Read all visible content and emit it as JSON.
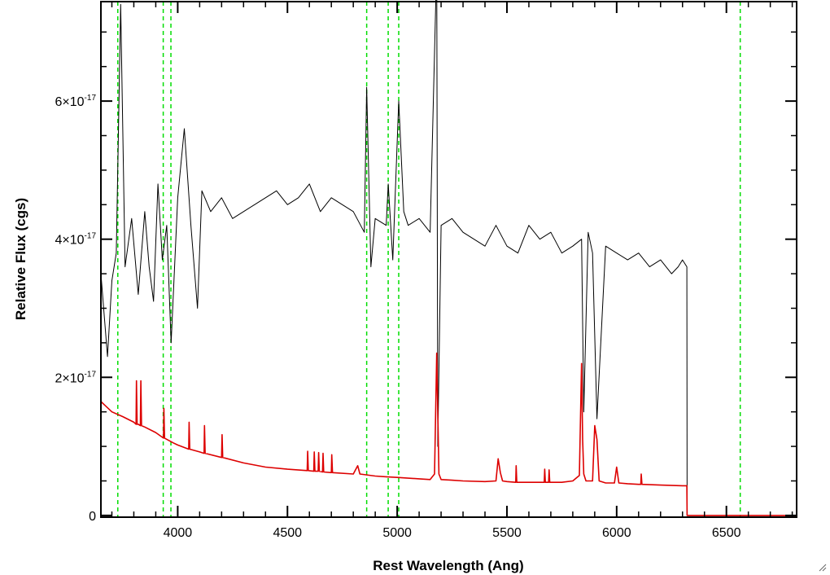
{
  "chart_data": {
    "type": "line",
    "xlabel": "Rest Wavelength (Ang)",
    "ylabel": "Relative Flux (cgs)",
    "xlim": [
      3650,
      6820
    ],
    "ylim": [
      -2.5e-19,
      7.44e-17
    ],
    "x_ticks": [
      {
        "value": 4000,
        "label": "4000"
      },
      {
        "value": 4500,
        "label": "4500"
      },
      {
        "value": 5000,
        "label": "5000"
      },
      {
        "value": 5500,
        "label": "5500"
      },
      {
        "value": 6000,
        "label": "6000"
      },
      {
        "value": 6500,
        "label": "6500"
      }
    ],
    "y_ticks": [
      {
        "value": 0,
        "label": "0",
        "mantissa": "0",
        "exponent": ""
      },
      {
        "value": 2e-17,
        "label": "2×10-17",
        "mantissa": "2×10",
        "exponent": "-17"
      },
      {
        "value": 4e-17,
        "label": "4×10-17",
        "mantissa": "4×10",
        "exponent": "-17"
      },
      {
        "value": 6e-17,
        "label": "6×10-17",
        "mantissa": "6×10",
        "exponent": "-17"
      }
    ],
    "vertical_lines": {
      "color": "#00dd00",
      "style": "dashed",
      "x": [
        3727,
        3934,
        3969,
        4861,
        4959,
        5007,
        6563
      ]
    },
    "series": [
      {
        "color": "#000000",
        "x": [
          3650,
          3680,
          3700,
          3720,
          3740,
          3760,
          3790,
          3820,
          3850,
          3870,
          3890,
          3910,
          3930,
          3950,
          3970,
          3990,
          4000,
          4030,
          4060,
          4090,
          4110,
          4150,
          4200,
          4250,
          4300,
          4350,
          4400,
          4450,
          4500,
          4550,
          4600,
          4650,
          4700,
          4750,
          4800,
          4850,
          4861,
          4880,
          4900,
          4950,
          4959,
          4980,
          5007,
          5030,
          5050,
          5100,
          5150,
          5180,
          5185,
          5200,
          5250,
          5300,
          5350,
          5400,
          5450,
          5500,
          5550,
          5600,
          5650,
          5700,
          5750,
          5800,
          5840,
          5850,
          5870,
          5890,
          5910,
          5950,
          6000,
          6050,
          6100,
          6150,
          6200,
          6250,
          6280,
          6300,
          6320,
          6321,
          6400,
          6500,
          6600,
          6700,
          6820
        ],
        "y": [
          3.5e-17,
          2.3e-17,
          3.4e-17,
          3.8e-17,
          7.4e-17,
          3.6e-17,
          4.3e-17,
          3.2e-17,
          4.4e-17,
          3.6e-17,
          3.1e-17,
          4.8e-17,
          3.7e-17,
          4.2e-17,
          2.5e-17,
          3.9e-17,
          4.6e-17,
          5.6e-17,
          4.2e-17,
          3e-17,
          4.7e-17,
          4.4e-17,
          4.6e-17,
          4.3e-17,
          4.4e-17,
          4.5e-17,
          4.6e-17,
          4.7e-17,
          4.5e-17,
          4.6e-17,
          4.8e-17,
          4.4e-17,
          4.6e-17,
          4.5e-17,
          4.4e-17,
          4.1e-17,
          6.2e-17,
          3.6e-17,
          4.3e-17,
          4.2e-17,
          4.8e-17,
          3.7e-17,
          6e-17,
          4.4e-17,
          4.2e-17,
          4.3e-17,
          4.1e-17,
          8e-17,
          1e-17,
          4.2e-17,
          4.3e-17,
          4.1e-17,
          4e-17,
          3.9e-17,
          4.2e-17,
          3.9e-17,
          3.8e-17,
          4.2e-17,
          4e-17,
          4.1e-17,
          3.8e-17,
          3.9e-17,
          4e-17,
          1.5e-17,
          4.1e-17,
          3.8e-17,
          1.4e-17,
          3.9e-17,
          3.8e-17,
          3.7e-17,
          3.8e-17,
          3.6e-17,
          3.7e-17,
          3.5e-17,
          3.6e-17,
          3.7e-17,
          3.6e-17,
          0,
          0,
          0,
          0,
          0,
          0
        ]
      },
      {
        "color": "#dd0000",
        "x": [
          3650,
          3700,
          3750,
          3800,
          3810,
          3812,
          3815,
          3820,
          3830,
          3832,
          3835,
          3850,
          3900,
          3935,
          3937,
          3940,
          3980,
          4000,
          4050,
          4052,
          4055,
          4100,
          4120,
          4122,
          4125,
          4200,
          4202,
          4205,
          4300,
          4400,
          4500,
          4590,
          4592,
          4595,
          4620,
          4622,
          4625,
          4640,
          4642,
          4645,
          4660,
          4662,
          4665,
          4700,
          4702,
          4705,
          4800,
          4820,
          4830,
          4900,
          4950,
          5000,
          5100,
          5150,
          5170,
          5180,
          5190,
          5200,
          5250,
          5300,
          5400,
          5450,
          5460,
          5470,
          5480,
          5500,
          5540,
          5542,
          5545,
          5600,
          5670,
          5672,
          5675,
          5690,
          5692,
          5695,
          5750,
          5800,
          5830,
          5840,
          5845,
          5850,
          5860,
          5890,
          5900,
          5910,
          5920,
          5950,
          5990,
          6000,
          6010,
          6050,
          6100,
          6110,
          6112,
          6115,
          6200,
          6300,
          6320,
          6321,
          6400,
          6500,
          6600,
          6700,
          6820
        ],
        "y": [
          1.65e-17,
          1.5e-17,
          1.43e-17,
          1.35e-17,
          1.32e-17,
          1.95e-17,
          1.32e-17,
          1.32e-17,
          1.3e-17,
          1.95e-17,
          1.3e-17,
          1.28e-17,
          1.2e-17,
          1.12e-17,
          1.55e-17,
          1.12e-17,
          1.05e-17,
          1.02e-17,
          9.6e-18,
          1.35e-17,
          9.6e-18,
          9.2e-18,
          9e-18,
          1.3e-17,
          9e-18,
          8.4e-18,
          1.17e-17,
          8.4e-18,
          7.6e-18,
          7e-18,
          6.7e-18,
          6.5e-18,
          9.3e-18,
          6.5e-18,
          6.4e-18,
          9.2e-18,
          6.4e-18,
          6.4e-18,
          9.1e-18,
          6.4e-18,
          6.3e-18,
          9e-18,
          6.3e-18,
          6.2e-18,
          8.8e-18,
          6.2e-18,
          6e-18,
          7.2e-18,
          6e-18,
          5.7e-18,
          5.6e-18,
          5.5e-18,
          5.3e-18,
          5.2e-18,
          6e-18,
          2.35e-17,
          6e-18,
          5.2e-18,
          5.1e-18,
          5e-18,
          4.9e-18,
          5e-18,
          8.2e-18,
          6.2e-18,
          5e-18,
          4.9e-18,
          4.8e-18,
          7.2e-18,
          4.8e-18,
          4.8e-18,
          4.8e-18,
          6.7e-18,
          4.8e-18,
          4.8e-18,
          6.6e-18,
          4.8e-18,
          4.8e-18,
          5e-18,
          5.8e-18,
          2.2e-17,
          1.1e-17,
          6e-18,
          5e-18,
          5e-18,
          1.3e-17,
          1.1e-17,
          5e-18,
          4.7e-18,
          4.7e-18,
          7e-18,
          4.7e-18,
          4.6e-18,
          4.5e-18,
          4.5e-18,
          6e-18,
          4.5e-18,
          4.4e-18,
          4.3e-18,
          4.3e-18,
          0,
          0,
          0,
          0,
          0,
          0
        ]
      }
    ]
  }
}
